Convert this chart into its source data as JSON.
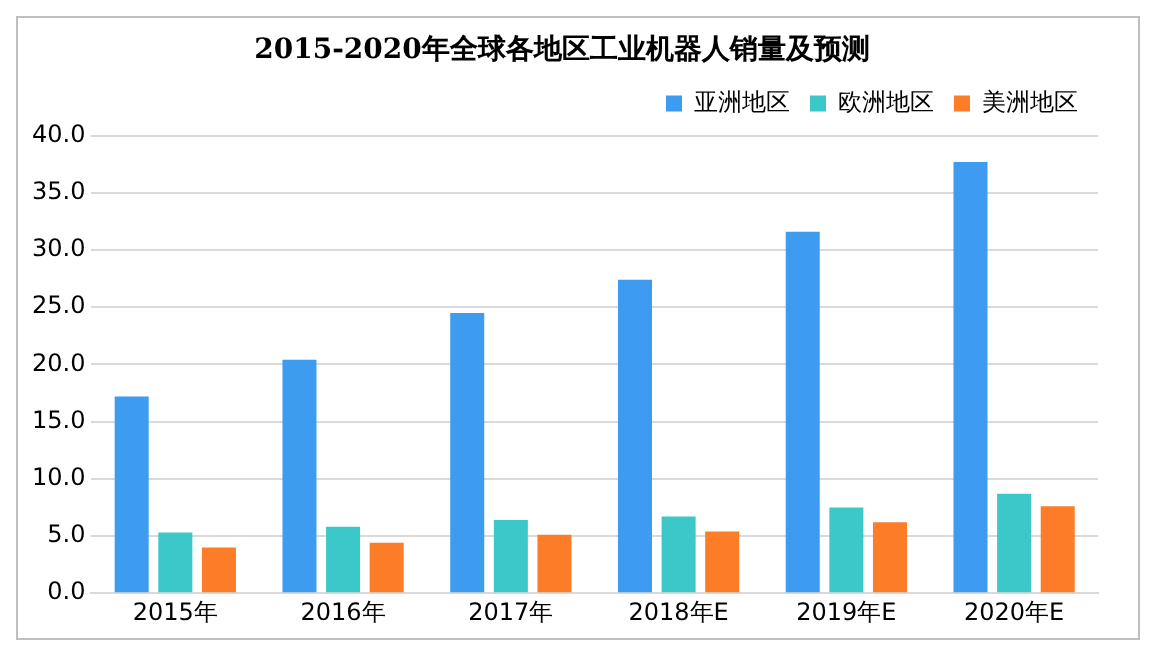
{
  "chart_data": {
    "type": "bar",
    "title": "2015-2020年全球各地区工业机器人销量及预测",
    "categories": [
      "2015年",
      "2016年",
      "2017年",
      "2018年E",
      "2019年E",
      "2020年E"
    ],
    "series": [
      {
        "name": "亚洲地区",
        "color": "#3d9cf0",
        "values": [
          17.2,
          20.4,
          24.5,
          27.4,
          31.6,
          37.7
        ]
      },
      {
        "name": "欧洲地区",
        "color": "#3cc8c8",
        "values": [
          5.3,
          5.8,
          6.4,
          6.7,
          7.5,
          8.7
        ]
      },
      {
        "name": "美洲地区",
        "color": "#fd7c28",
        "values": [
          4.0,
          4.4,
          5.1,
          5.4,
          6.2,
          7.6
        ]
      }
    ],
    "ylim": [
      0,
      40
    ],
    "yticks": [
      {
        "value": 0,
        "label": "0.0"
      },
      {
        "value": 5,
        "label": "5.0"
      },
      {
        "value": 10,
        "label": "10.0"
      },
      {
        "value": 15,
        "label": "15.0"
      },
      {
        "value": 20,
        "label": "20.0"
      },
      {
        "value": 25,
        "label": "25.0"
      },
      {
        "value": 30,
        "label": "30.0"
      },
      {
        "value": 35,
        "label": "35.0"
      },
      {
        "value": 40,
        "label": "40.0"
      }
    ],
    "grid": "y",
    "legend": "top right"
  }
}
